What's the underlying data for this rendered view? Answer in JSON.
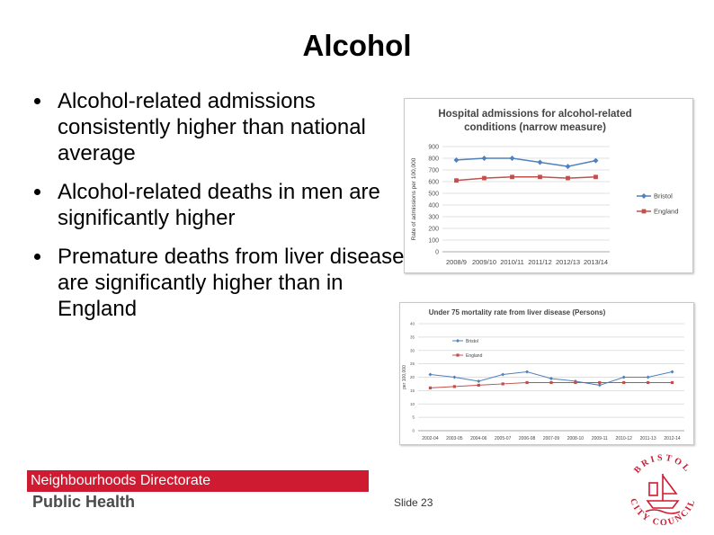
{
  "slide": {
    "title": "Alcohol",
    "bullets": [
      "Alcohol-related admissions consistently higher than national average",
      "Alcohol-related deaths in men are significantly higher",
      "Premature deaths from liver disease are significantly higher than in England"
    ],
    "footer_directorate": "Neighbourhoods Directorate",
    "footer_public_health": "Public Health",
    "slide_number": "Slide 23",
    "logo_text": "BRISTOL CITY COUNCIL",
    "accent_color": "#cf1b31"
  },
  "chart_data": [
    {
      "type": "line",
      "title": "Hospital admissions for alcohol-related conditions (narrow measure)",
      "title_lines": [
        "Hospital admissions for alcohol-related",
        "conditions (narrow measure)"
      ],
      "ylabel": "Rate of admissions per 100,000",
      "xlabel": "",
      "categories": [
        "2008/9",
        "2009/10",
        "2010/11",
        "2011/12",
        "2012/13",
        "2013/14"
      ],
      "ylim": [
        0,
        900
      ],
      "yticks": [
        0,
        100,
        200,
        300,
        400,
        500,
        600,
        700,
        800,
        900
      ],
      "grid": true,
      "legend_position": "right",
      "series": [
        {
          "name": "Bristol",
          "values": [
            785,
            800,
            800,
            765,
            730,
            780
          ],
          "color": "#4f81bd",
          "marker": "diamond"
        },
        {
          "name": "England",
          "values": [
            610,
            630,
            640,
            640,
            630,
            640
          ],
          "color": "#c0504d",
          "marker": "square"
        }
      ]
    },
    {
      "type": "line",
      "title": "Under 75 mortality rate from liver disease (Persons)",
      "title_lines": [
        "Under 75 mortality rate from liver disease (Persons)"
      ],
      "ylabel": "per 100,000",
      "xlabel": "",
      "categories": [
        "2002-04",
        "2003-05",
        "2004-06",
        "2005-07",
        "2006-08",
        "2007-09",
        "2008-10",
        "2009-11",
        "2010-12",
        "2011-13",
        "2012-14"
      ],
      "ylim": [
        0,
        40
      ],
      "yticks": [
        0,
        5,
        10,
        15,
        20,
        25,
        30,
        35,
        40
      ],
      "grid": true,
      "legend_position": "top-left",
      "series": [
        {
          "name": "Bristol",
          "values": [
            21,
            20,
            18.5,
            21,
            22,
            19.5,
            18.5,
            17,
            20,
            20,
            22
          ],
          "color": "#4f81bd",
          "marker": "diamond"
        },
        {
          "name": "England",
          "values": [
            16,
            16.5,
            17,
            17.5,
            18,
            18,
            18,
            18,
            18,
            18,
            18
          ],
          "color": "#c0504d",
          "marker": "square"
        }
      ]
    }
  ]
}
